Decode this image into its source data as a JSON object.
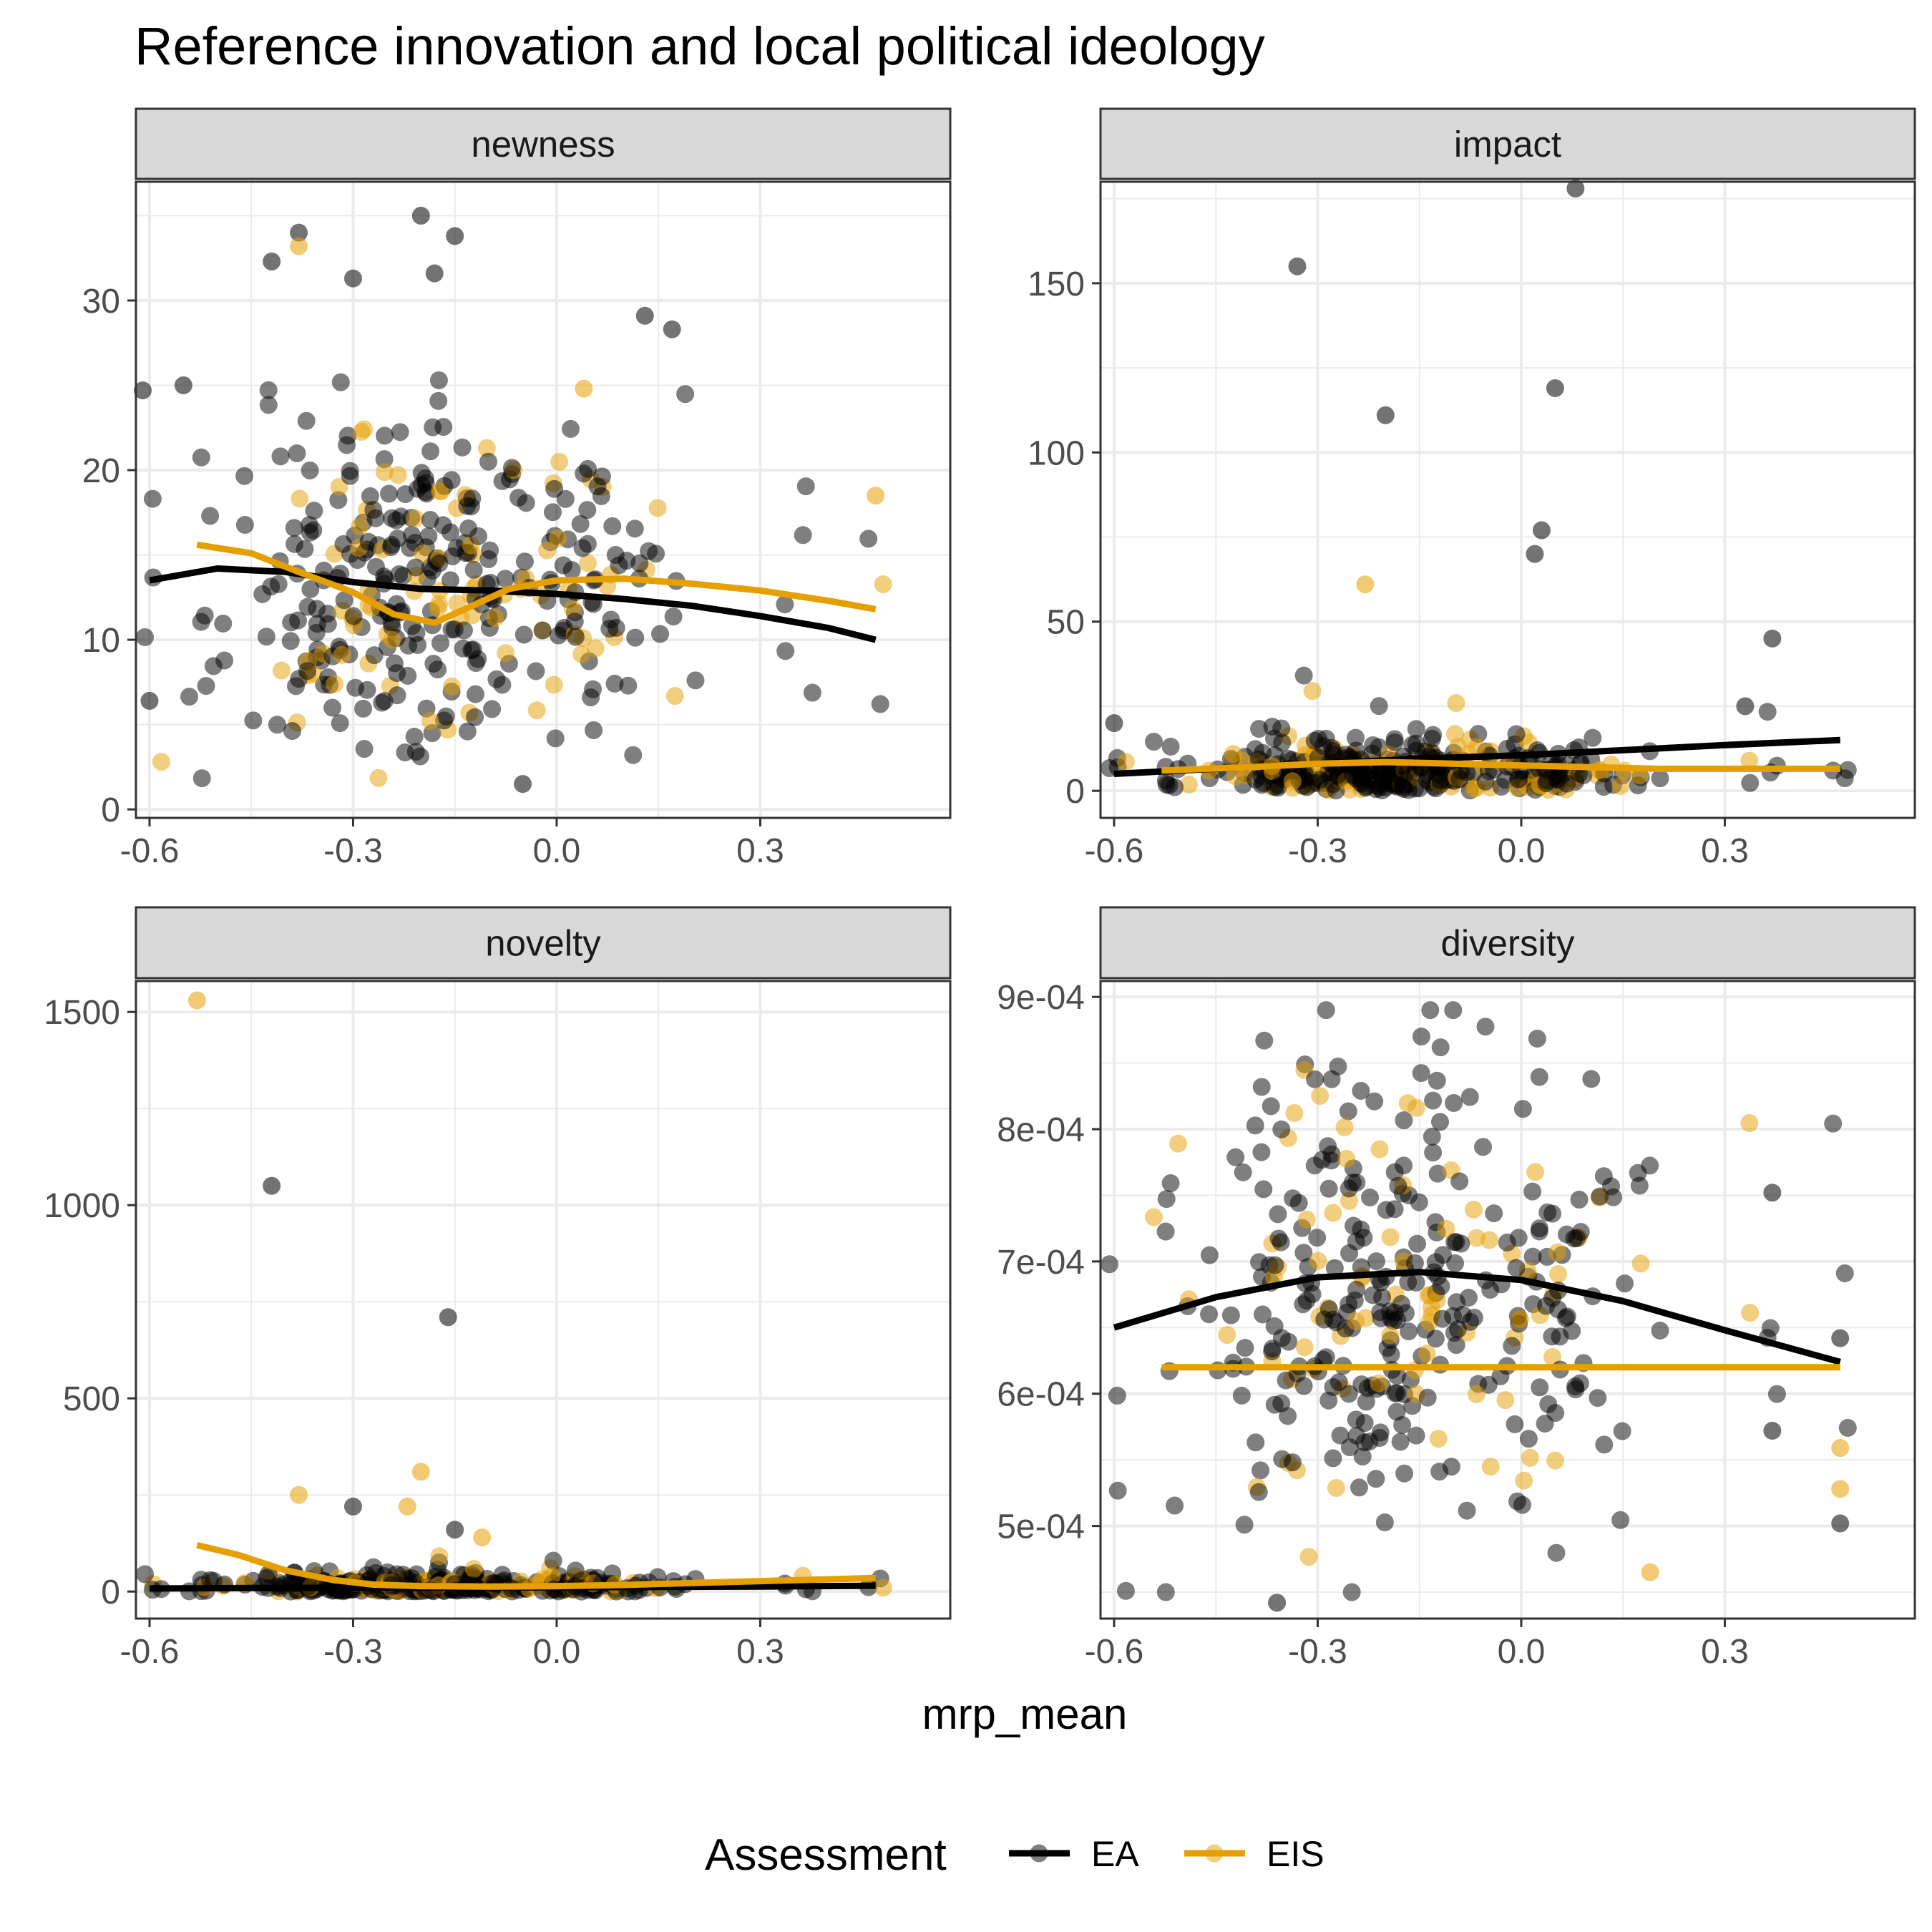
{
  "chart_data": {
    "type": "scatter",
    "title": "Reference innovation and local political ideology",
    "xlabel": "mrp_mean",
    "legend": {
      "title": "Assessment",
      "position": "bottom",
      "entries": [
        {
          "name": "EA",
          "color": "#000000"
        },
        {
          "name": "EIS",
          "color": "#E69F00"
        }
      ]
    },
    "colors": {
      "EA": "#000000",
      "EIS": "#E69F00",
      "strip_bg": "#D9D9D9",
      "grid": "#EBEBEB"
    },
    "x_ticks": [
      "-0.6",
      "-0.3",
      "0.0",
      "0.3"
    ],
    "x_tick_values": [
      -0.6,
      -0.3,
      0.0,
      0.3
    ],
    "xlim": [
      -0.62,
      0.58
    ],
    "panels": [
      {
        "name": "newness",
        "ylim": [
          -0.5,
          37
        ],
        "y_ticks": [
          "0",
          "10",
          "20",
          "30"
        ],
        "y_tick_values": [
          0,
          10,
          20,
          30
        ],
        "smooth": {
          "EA": {
            "x": [
              -0.6,
              -0.5,
              -0.4,
              -0.3,
              -0.2,
              -0.1,
              0.0,
              0.1,
              0.2,
              0.3,
              0.4,
              0.47
            ],
            "y": [
              13.5,
              14.2,
              14.0,
              13.4,
              13.0,
              12.9,
              12.7,
              12.4,
              12.0,
              11.4,
              10.7,
              10.0
            ]
          },
          "EIS": {
            "x": [
              -0.53,
              -0.45,
              -0.38,
              -0.3,
              -0.24,
              -0.18,
              -0.13,
              -0.07,
              0.0,
              0.1,
              0.2,
              0.3,
              0.4,
              0.47
            ],
            "y": [
              15.6,
              15.1,
              14.0,
              12.8,
              11.5,
              11.0,
              11.9,
              13.0,
              13.5,
              13.6,
              13.3,
              12.9,
              12.3,
              11.8
            ]
          }
        }
      },
      {
        "name": "impact",
        "ylim": [
          -8,
          180
        ],
        "y_ticks": [
          "0",
          "50",
          "100",
          "150"
        ],
        "y_tick_values": [
          0,
          50,
          100,
          150
        ],
        "smooth": {
          "EA": {
            "x": [
              -0.6,
              -0.45,
              -0.3,
              -0.15,
              0.0,
              0.15,
              0.3,
              0.47
            ],
            "y": [
              5,
              6.5,
              8,
              9.5,
              10.5,
              12,
              13.5,
              15
            ]
          },
          "EIS": {
            "x": [
              -0.53,
              -0.4,
              -0.3,
              -0.2,
              -0.1,
              0.0,
              0.1,
              0.2,
              0.3,
              0.47
            ],
            "y": [
              6,
              7,
              8,
              8.5,
              8,
              7.5,
              7,
              6.5,
              6.5,
              6.5
            ]
          }
        }
      },
      {
        "name": "novelty",
        "ylim": [
          -70,
          1580
        ],
        "y_ticks": [
          "0",
          "500",
          "1000",
          "1500"
        ],
        "y_tick_values": [
          0,
          500,
          1000,
          1500
        ],
        "smooth": {
          "EA": {
            "x": [
              -0.6,
              -0.45,
              -0.3,
              -0.15,
              0.0,
              0.15,
              0.3,
              0.47
            ],
            "y": [
              8,
              9,
              10,
              10,
              11,
              12,
              13,
              15
            ]
          },
          "EIS": {
            "x": [
              -0.53,
              -0.47,
              -0.4,
              -0.33,
              -0.27,
              -0.2,
              -0.1,
              0.0,
              0.1,
              0.2,
              0.3,
              0.47
            ],
            "y": [
              120,
              95,
              55,
              30,
              18,
              14,
              13,
              14,
              17,
              22,
              27,
              35
            ]
          }
        }
      },
      {
        "name": "diversity",
        "ylim": [
          0.00043,
          0.000912
        ],
        "y_ticks": [
          "5e-04",
          "6e-04",
          "7e-04",
          "8e-04",
          "9e-04"
        ],
        "y_tick_values": [
          0.0005,
          0.0006,
          0.0007,
          0.0008,
          0.0009
        ],
        "smooth": {
          "EA": {
            "x": [
              -0.6,
              -0.45,
              -0.3,
              -0.15,
              0.0,
              0.15,
              0.3,
              0.47
            ],
            "y": [
              0.00065,
              0.000673,
              0.000688,
              0.000692,
              0.000686,
              0.00067,
              0.000648,
              0.000624
            ]
          },
          "EIS": {
            "x": [
              -0.53,
              0.0,
              0.47
            ],
            "y": [
              0.00062,
              0.00062,
              0.00062
            ]
          }
        }
      }
    ]
  }
}
